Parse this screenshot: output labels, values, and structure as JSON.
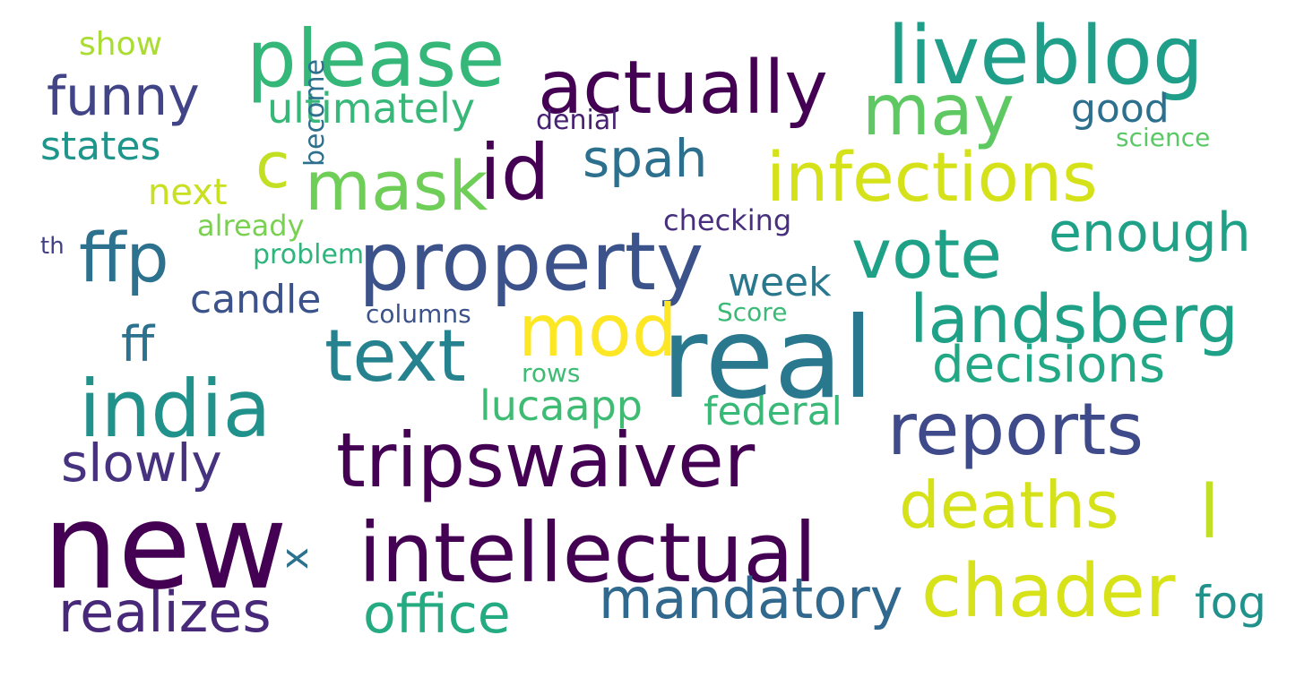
{
  "words": [
    {
      "text": "new",
      "color": "#440154"
    },
    {
      "text": "real",
      "color": "#2a788e"
    },
    {
      "text": "tripswaiver",
      "color": "#440154"
    },
    {
      "text": "intellectual",
      "color": "#440154"
    },
    {
      "text": "property",
      "color": "#3b528b"
    },
    {
      "text": "india",
      "color": "#21918c"
    },
    {
      "text": "liveblog",
      "color": "#1f9e89"
    },
    {
      "text": "chader",
      "color": "#d8e219"
    },
    {
      "text": "please",
      "color": "#35b779"
    },
    {
      "text": "actually",
      "color": "#440154"
    },
    {
      "text": "reports",
      "color": "#3e4a89"
    },
    {
      "text": "infections",
      "color": "#d5e21a"
    },
    {
      "text": "text",
      "color": "#26828e"
    },
    {
      "text": "id",
      "color": "#440154"
    },
    {
      "text": "deaths",
      "color": "#d5e21a"
    },
    {
      "text": "vote",
      "color": "#1fa187"
    },
    {
      "text": "mod",
      "color": "#fde725"
    },
    {
      "text": "mask",
      "color": "#6ece58"
    },
    {
      "text": "landsberg",
      "color": "#1fa187"
    },
    {
      "text": "may",
      "color": "#5ec962"
    },
    {
      "text": "ffp",
      "color": "#2c728e"
    },
    {
      "text": "mandatory",
      "color": "#31688e"
    },
    {
      "text": "realizes",
      "color": "#482878"
    },
    {
      "text": "c",
      "color": "#c2df23"
    },
    {
      "text": "office",
      "color": "#25ab82"
    },
    {
      "text": "enough",
      "color": "#1fa187"
    },
    {
      "text": "decisions",
      "color": "#22a884"
    },
    {
      "text": "funny",
      "color": "#414487"
    },
    {
      "text": "slowly",
      "color": "#46327e"
    },
    {
      "text": "spah",
      "color": "#2d708e"
    },
    {
      "text": "l",
      "color": "#c0df25"
    },
    {
      "text": "ultimately",
      "color": "#37b878"
    },
    {
      "text": "ff",
      "color": "#2c728e"
    },
    {
      "text": "lucaapp",
      "color": "#3fbc73"
    },
    {
      "text": "federal",
      "color": "#38b977"
    },
    {
      "text": "states",
      "color": "#1f968b"
    },
    {
      "text": "candle",
      "color": "#3b528b"
    },
    {
      "text": "week",
      "color": "#2a788e"
    },
    {
      "text": "fog",
      "color": "#21918c"
    },
    {
      "text": "next",
      "color": "#c8e020"
    },
    {
      "text": "good",
      "color": "#2d708e"
    },
    {
      "text": "show",
      "color": "#aadc32"
    },
    {
      "text": "already",
      "color": "#7ad151"
    },
    {
      "text": "checking",
      "color": "#472f7d"
    },
    {
      "text": "denial",
      "color": "#482173"
    },
    {
      "text": "science",
      "color": "#5ac864"
    },
    {
      "text": "problem",
      "color": "#2fb47c"
    },
    {
      "text": "Score",
      "color": "#3aba76"
    },
    {
      "text": "columns",
      "color": "#3b528b"
    },
    {
      "text": "rows",
      "color": "#3dbc74"
    },
    {
      "text": "become",
      "color": "#2d708e"
    },
    {
      "text": "th",
      "color": "#424086"
    },
    {
      "text": "x",
      "color": "#2c728e"
    }
  ]
}
